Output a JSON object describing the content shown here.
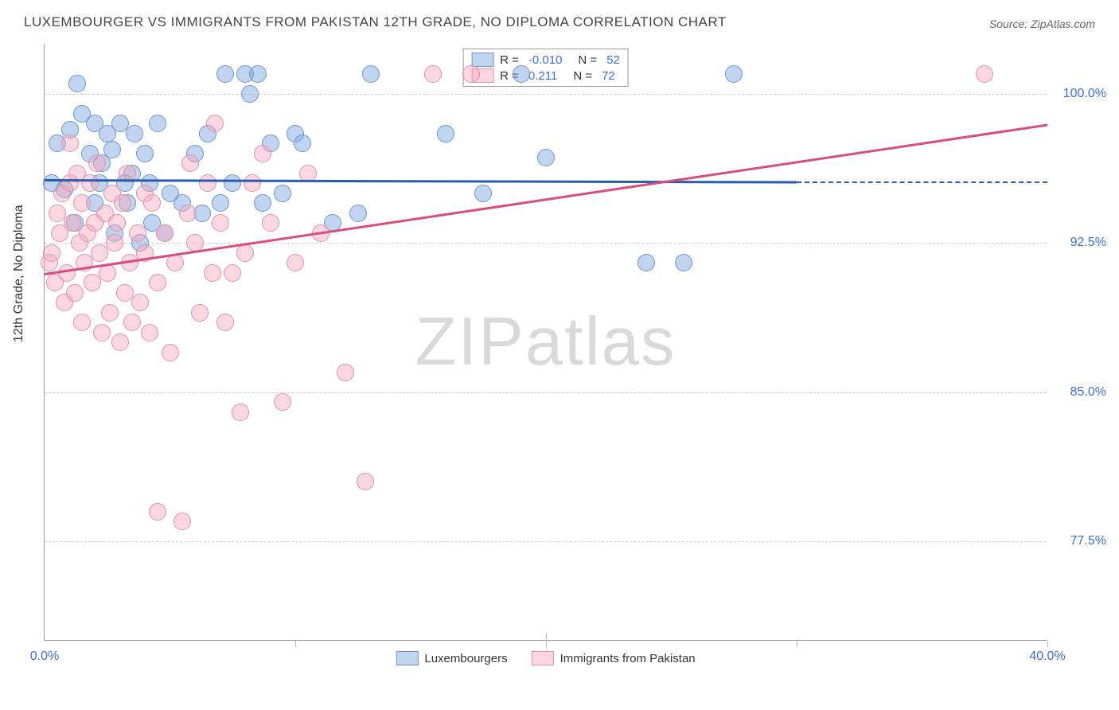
{
  "title": "LUXEMBOURGER VS IMMIGRANTS FROM PAKISTAN 12TH GRADE, NO DIPLOMA CORRELATION CHART",
  "source": "Source: ZipAtlas.com",
  "watermark": "ZIPatlas",
  "y_axis_label": "12th Grade, No Diploma",
  "chart": {
    "type": "scatter",
    "background_color": "#ffffff",
    "grid_color": "#cccccc",
    "axis_color": "#999999",
    "tick_label_color": "#3b6fd4",
    "xlim": [
      0,
      40
    ],
    "ylim": [
      72.5,
      102.5
    ],
    "x_ticks": [
      {
        "pos": 0,
        "label": "0.0%"
      },
      {
        "pos": 40,
        "label": "40.0%"
      }
    ],
    "x_grid_positions": [
      0,
      10,
      20,
      30,
      40
    ],
    "y_ticks": [
      {
        "pos": 100,
        "label": "100.0%"
      },
      {
        "pos": 92.5,
        "label": "92.5%"
      },
      {
        "pos": 85,
        "label": "85.0%"
      },
      {
        "pos": 77.5,
        "label": "77.5%"
      }
    ],
    "series": [
      {
        "name": "Luxembourgers",
        "fill_color": "rgba(119,162,222,0.45)",
        "stroke_color": "#6a95d0",
        "line_color": "#2a5db0",
        "marker_radius": 11,
        "r_value": "-0.010",
        "n_value": "52",
        "trend": {
          "x1": 0,
          "y1": 95.7,
          "x2": 30,
          "y2": 95.6,
          "dash_to_x": 40
        },
        "points": [
          [
            0.3,
            95.5
          ],
          [
            0.5,
            97.5
          ],
          [
            0.8,
            95.2
          ],
          [
            1.0,
            98.2
          ],
          [
            1.2,
            93.5
          ],
          [
            1.3,
            100.5
          ],
          [
            1.5,
            99.0
          ],
          [
            1.8,
            97.0
          ],
          [
            2.0,
            98.5
          ],
          [
            2.0,
            94.5
          ],
          [
            2.2,
            95.5
          ],
          [
            2.3,
            96.5
          ],
          [
            2.5,
            98.0
          ],
          [
            2.7,
            97.2
          ],
          [
            2.8,
            93.0
          ],
          [
            3.0,
            98.5
          ],
          [
            3.2,
            95.5
          ],
          [
            3.3,
            94.5
          ],
          [
            3.5,
            96.0
          ],
          [
            3.6,
            98.0
          ],
          [
            3.8,
            92.5
          ],
          [
            4.0,
            97.0
          ],
          [
            4.2,
            95.5
          ],
          [
            4.3,
            93.5
          ],
          [
            4.5,
            98.5
          ],
          [
            4.8,
            93.0
          ],
          [
            5.0,
            95.0
          ],
          [
            5.5,
            94.5
          ],
          [
            6.0,
            97.0
          ],
          [
            6.3,
            94.0
          ],
          [
            6.5,
            98.0
          ],
          [
            7.0,
            94.5
          ],
          [
            7.2,
            101.0
          ],
          [
            7.5,
            95.5
          ],
          [
            8.0,
            101.0
          ],
          [
            8.2,
            100.0
          ],
          [
            8.5,
            101.0
          ],
          [
            8.7,
            94.5
          ],
          [
            9.0,
            97.5
          ],
          [
            9.5,
            95.0
          ],
          [
            10.0,
            98.0
          ],
          [
            10.3,
            97.5
          ],
          [
            11.5,
            93.5
          ],
          [
            12.5,
            94.0
          ],
          [
            13.0,
            101.0
          ],
          [
            16.0,
            98.0
          ],
          [
            17.5,
            95.0
          ],
          [
            19.0,
            101.0
          ],
          [
            20.0,
            96.8
          ],
          [
            24.0,
            91.5
          ],
          [
            25.5,
            91.5
          ],
          [
            27.5,
            101.0
          ]
        ]
      },
      {
        "name": "Immigrants from Pakistan",
        "fill_color": "rgba(244,166,188,0.45)",
        "stroke_color": "#e390aa",
        "line_color": "#d94c82",
        "marker_radius": 11,
        "r_value": "0.211",
        "n_value": "72",
        "trend": {
          "x1": 0,
          "y1": 91.0,
          "x2": 40,
          "y2": 98.5,
          "dash_to_x": null
        },
        "points": [
          [
            0.2,
            91.5
          ],
          [
            0.3,
            92.0
          ],
          [
            0.4,
            90.5
          ],
          [
            0.5,
            94.0
          ],
          [
            0.6,
            93.0
          ],
          [
            0.7,
            95.0
          ],
          [
            0.8,
            89.5
          ],
          [
            0.9,
            91.0
          ],
          [
            1.0,
            97.5
          ],
          [
            1.0,
            95.5
          ],
          [
            1.1,
            93.5
          ],
          [
            1.2,
            90.0
          ],
          [
            1.3,
            96.0
          ],
          [
            1.4,
            92.5
          ],
          [
            1.5,
            88.5
          ],
          [
            1.5,
            94.5
          ],
          [
            1.6,
            91.5
          ],
          [
            1.7,
            93.0
          ],
          [
            1.8,
            95.5
          ],
          [
            1.9,
            90.5
          ],
          [
            2.0,
            93.5
          ],
          [
            2.1,
            96.5
          ],
          [
            2.2,
            92.0
          ],
          [
            2.3,
            88.0
          ],
          [
            2.4,
            94.0
          ],
          [
            2.5,
            91.0
          ],
          [
            2.6,
            89.0
          ],
          [
            2.7,
            95.0
          ],
          [
            2.8,
            92.5
          ],
          [
            2.9,
            93.5
          ],
          [
            3.0,
            87.5
          ],
          [
            3.1,
            94.5
          ],
          [
            3.2,
            90.0
          ],
          [
            3.3,
            96.0
          ],
          [
            3.4,
            91.5
          ],
          [
            3.5,
            88.5
          ],
          [
            3.7,
            93.0
          ],
          [
            3.8,
            89.5
          ],
          [
            4.0,
            95.0
          ],
          [
            4.0,
            92.0
          ],
          [
            4.2,
            88.0
          ],
          [
            4.3,
            94.5
          ],
          [
            4.5,
            79.0
          ],
          [
            4.5,
            90.5
          ],
          [
            4.8,
            93.0
          ],
          [
            5.0,
            87.0
          ],
          [
            5.2,
            91.5
          ],
          [
            5.5,
            78.5
          ],
          [
            5.7,
            94.0
          ],
          [
            5.8,
            96.5
          ],
          [
            6.0,
            92.5
          ],
          [
            6.2,
            89.0
          ],
          [
            6.5,
            95.5
          ],
          [
            6.7,
            91.0
          ],
          [
            6.8,
            98.5
          ],
          [
            7.0,
            93.5
          ],
          [
            7.2,
            88.5
          ],
          [
            7.5,
            91.0
          ],
          [
            7.8,
            84.0
          ],
          [
            8.0,
            92.0
          ],
          [
            8.3,
            95.5
          ],
          [
            8.7,
            97.0
          ],
          [
            9.0,
            93.5
          ],
          [
            9.5,
            84.5
          ],
          [
            10.0,
            91.5
          ],
          [
            10.5,
            96.0
          ],
          [
            11.0,
            93.0
          ],
          [
            12.0,
            86.0
          ],
          [
            12.8,
            80.5
          ],
          [
            15.5,
            101.0
          ],
          [
            17.0,
            101.0
          ],
          [
            37.5,
            101.0
          ]
        ]
      }
    ],
    "legend_top": {
      "r_label": "R =",
      "n_label": "N ="
    },
    "legend_bottom_labels": [
      "Luxembourgers",
      "Immigrants from Pakistan"
    ]
  }
}
